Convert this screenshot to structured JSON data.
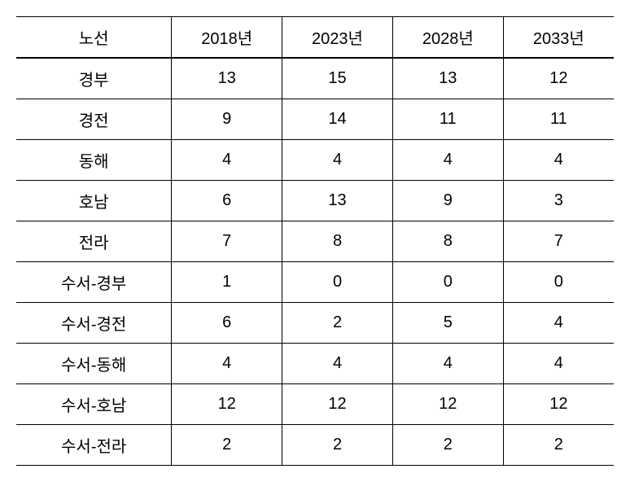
{
  "table": {
    "type": "table",
    "columns": [
      "노선",
      "2018년",
      "2023년",
      "2028년",
      "2033년"
    ],
    "rows": [
      [
        "경부",
        "13",
        "15",
        "13",
        "12"
      ],
      [
        "경전",
        "9",
        "14",
        "11",
        "11"
      ],
      [
        "동해",
        "4",
        "4",
        "4",
        "4"
      ],
      [
        "호남",
        "6",
        "13",
        "9",
        "3"
      ],
      [
        "전라",
        "7",
        "8",
        "8",
        "7"
      ],
      [
        "수서-경부",
        "1",
        "0",
        "0",
        "0"
      ],
      [
        "수서-경전",
        "6",
        "2",
        "5",
        "4"
      ],
      [
        "수서-동해",
        "4",
        "4",
        "4",
        "4"
      ],
      [
        "수서-호남",
        "12",
        "12",
        "12",
        "12"
      ],
      [
        "수서-전라",
        "2",
        "2",
        "2",
        "2"
      ]
    ],
    "border_color": "#000000",
    "background_color": "#ffffff",
    "text_color": "#000000",
    "font_size": 20,
    "column_widths": [
      "26%",
      "18.5%",
      "18.5%",
      "18.5%",
      "18.5%"
    ],
    "alignment": "center"
  }
}
